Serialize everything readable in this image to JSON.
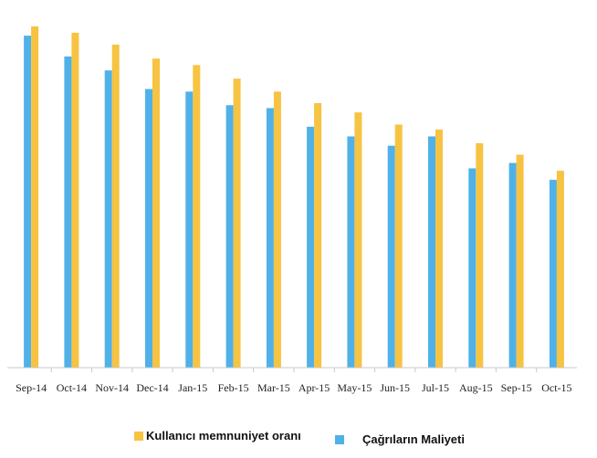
{
  "chart_data": {
    "type": "bar",
    "categories": [
      "Sep-14",
      "Oct-14",
      "Nov-14",
      "Dec-14",
      "Jan-15",
      "Feb-15",
      "Mar-15",
      "Apr-15",
      "May-15",
      "Jun-15",
      "Jul-15",
      "Aug-15",
      "Sep-15",
      "Oct-15"
    ],
    "series": [
      {
        "name": "Kullanıcı memnuniyet oranı",
        "color": "#F7C342",
        "values": [
          95.2,
          93.4,
          90.1,
          86.2,
          84.4,
          80.6,
          77.0,
          73.8,
          71.2,
          67.8,
          66.4,
          62.6,
          59.4,
          54.9
        ]
      },
      {
        "name": "Çağrıların Maliyeti",
        "color": "#4FB1E8",
        "values": [
          92.6,
          86.8,
          82.9,
          77.7,
          77.0,
          73.2,
          72.4,
          67.2,
          64.5,
          61.9,
          64.5,
          55.6,
          57.1,
          52.4
        ]
      }
    ],
    "ylim": [
      0,
      100
    ],
    "grid": false,
    "legend_position": "bottom"
  }
}
